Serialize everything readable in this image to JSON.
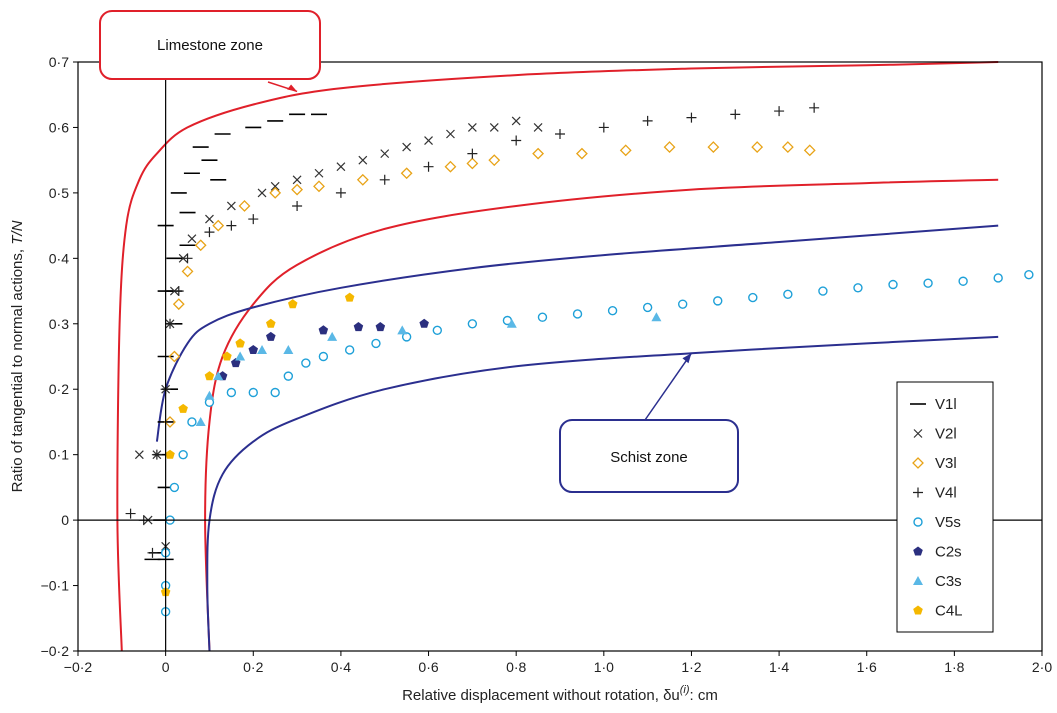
{
  "chart_data": {
    "type": "scatter",
    "xlabel": "Relative displacement without rotation, δu",
    "xlabel_superscript": "(i)",
    "xlabel_suffix": ": cm",
    "ylabel": "Ratio of tangential to normal actions, ",
    "ylabel_italic": "T/N",
    "xlim": [
      -0.2,
      2.0
    ],
    "ylim": [
      -0.2,
      0.7
    ],
    "x_ticks": [
      -0.2,
      0.0,
      0.2,
      0.4,
      0.6,
      0.8,
      1.0,
      1.2,
      1.4,
      1.6,
      1.8,
      2.0
    ],
    "x_tick_labels": [
      "−0·2",
      "0",
      "0·2",
      "0·4",
      "0·6",
      "0·8",
      "1·0",
      "1·2",
      "1·4",
      "1·6",
      "1·8",
      "2·0"
    ],
    "y_ticks": [
      -0.2,
      -0.1,
      0.0,
      0.1,
      0.2,
      0.3,
      0.4,
      0.5,
      0.6,
      0.7
    ],
    "y_tick_labels": [
      "−0·2",
      "−0·1",
      "0",
      "0·1",
      "0·2",
      "0·3",
      "0·4",
      "0·5",
      "0·6",
      "0·7"
    ],
    "grid": false,
    "legend_position": "bottom-right",
    "annotations": [
      {
        "text": "Limestone zone",
        "color": "#e0202a",
        "arrow_to": [
          0.3,
          0.655
        ]
      },
      {
        "text": "Schist zone",
        "color": "#2b2f8f",
        "arrow_to": [
          1.2,
          0.255
        ]
      }
    ],
    "envelopes": [
      {
        "zone": "Limestone zone",
        "color": "#e0202a",
        "points": [
          [
            -0.1,
            -0.2
          ],
          [
            -0.11,
            0.0
          ],
          [
            -0.105,
            0.3
          ],
          [
            -0.09,
            0.45
          ],
          [
            -0.06,
            0.52
          ],
          [
            -0.02,
            0.56
          ],
          [
            0.05,
            0.6
          ],
          [
            0.2,
            0.635
          ],
          [
            0.4,
            0.66
          ],
          [
            0.8,
            0.68
          ],
          [
            1.2,
            0.69
          ],
          [
            1.6,
            0.695
          ],
          [
            1.9,
            0.7
          ]
        ]
      },
      {
        "zone": "Limestone zone",
        "color": "#e0202a",
        "points": [
          [
            0.1,
            -0.2
          ],
          [
            0.09,
            0.0
          ],
          [
            0.1,
            0.15
          ],
          [
            0.13,
            0.25
          ],
          [
            0.2,
            0.33
          ],
          [
            0.3,
            0.39
          ],
          [
            0.5,
            0.445
          ],
          [
            0.8,
            0.48
          ],
          [
            1.2,
            0.505
          ],
          [
            1.6,
            0.515
          ],
          [
            1.9,
            0.52
          ]
        ]
      },
      {
        "zone": "Schist zone",
        "color": "#2b2f8f",
        "points": [
          [
            -0.02,
            0.12
          ],
          [
            0.0,
            0.2
          ],
          [
            0.05,
            0.27
          ],
          [
            0.1,
            0.3
          ],
          [
            0.2,
            0.325
          ],
          [
            0.4,
            0.355
          ],
          [
            0.7,
            0.385
          ],
          [
            1.0,
            0.405
          ],
          [
            1.4,
            0.425
          ],
          [
            1.9,
            0.45
          ]
        ]
      },
      {
        "zone": "Schist zone",
        "color": "#2b2f8f",
        "points": [
          [
            0.1,
            -0.2
          ],
          [
            0.095,
            -0.1
          ],
          [
            0.1,
            0.0
          ],
          [
            0.13,
            0.07
          ],
          [
            0.2,
            0.12
          ],
          [
            0.3,
            0.155
          ],
          [
            0.5,
            0.2
          ],
          [
            0.8,
            0.235
          ],
          [
            1.2,
            0.255
          ],
          [
            1.6,
            0.27
          ],
          [
            1.9,
            0.28
          ]
        ]
      }
    ],
    "series": [
      {
        "name": "V1l",
        "marker": "dash",
        "color": "#000000",
        "points": [
          [
            -0.03,
            -0.06
          ],
          [
            -0.02,
            -0.05
          ],
          [
            0.0,
            -0.06
          ],
          [
            -0.01,
            0.0
          ],
          [
            0.0,
            0.05
          ],
          [
            -0.01,
            0.1
          ],
          [
            0.0,
            0.15
          ],
          [
            0.01,
            0.2
          ],
          [
            0.0,
            0.25
          ],
          [
            0.02,
            0.3
          ],
          [
            0.0,
            0.35
          ],
          [
            0.02,
            0.4
          ],
          [
            0.0,
            0.45
          ],
          [
            0.05,
            0.47
          ],
          [
            0.03,
            0.5
          ],
          [
            0.06,
            0.53
          ],
          [
            0.1,
            0.55
          ],
          [
            0.08,
            0.57
          ],
          [
            0.13,
            0.59
          ],
          [
            0.2,
            0.6
          ],
          [
            0.25,
            0.61
          ],
          [
            0.3,
            0.62
          ],
          [
            0.35,
            0.62
          ],
          [
            0.12,
            0.52
          ],
          [
            0.05,
            0.42
          ],
          [
            0.02,
            0.35
          ]
        ]
      },
      {
        "name": "V2l",
        "marker": "cross",
        "color": "#333333",
        "points": [
          [
            -0.04,
            0.0
          ],
          [
            -0.02,
            0.1
          ],
          [
            0.0,
            0.2
          ],
          [
            0.01,
            0.3
          ],
          [
            0.02,
            0.35
          ],
          [
            0.04,
            0.4
          ],
          [
            0.06,
            0.43
          ],
          [
            0.1,
            0.46
          ],
          [
            0.15,
            0.48
          ],
          [
            0.22,
            0.5
          ],
          [
            0.3,
            0.52
          ],
          [
            0.4,
            0.54
          ],
          [
            0.5,
            0.56
          ],
          [
            0.6,
            0.58
          ],
          [
            0.7,
            0.6
          ],
          [
            0.8,
            0.61
          ],
          [
            0.85,
            0.6
          ],
          [
            0.75,
            0.6
          ],
          [
            0.65,
            0.59
          ],
          [
            0.55,
            0.57
          ],
          [
            0.45,
            0.55
          ],
          [
            0.35,
            0.53
          ],
          [
            0.25,
            0.51
          ],
          [
            0.0,
            -0.04
          ],
          [
            -0.06,
            0.1
          ]
        ]
      },
      {
        "name": "V3l",
        "marker": "diamond",
        "color": "#e8a317",
        "points": [
          [
            0.01,
            0.15
          ],
          [
            0.02,
            0.25
          ],
          [
            0.03,
            0.33
          ],
          [
            0.05,
            0.38
          ],
          [
            0.08,
            0.42
          ],
          [
            0.12,
            0.45
          ],
          [
            0.18,
            0.48
          ],
          [
            0.25,
            0.5
          ],
          [
            0.35,
            0.51
          ],
          [
            0.45,
            0.52
          ],
          [
            0.55,
            0.53
          ],
          [
            0.65,
            0.54
          ],
          [
            0.75,
            0.55
          ],
          [
            0.85,
            0.56
          ],
          [
            0.95,
            0.56
          ],
          [
            1.05,
            0.565
          ],
          [
            1.15,
            0.57
          ],
          [
            1.25,
            0.57
          ],
          [
            1.35,
            0.57
          ],
          [
            1.42,
            0.57
          ],
          [
            1.47,
            0.565
          ],
          [
            0.7,
            0.545
          ],
          [
            0.3,
            0.505
          ]
        ]
      },
      {
        "name": "V4l",
        "marker": "plus",
        "color": "#222222",
        "points": [
          [
            -0.03,
            -0.05
          ],
          [
            -0.05,
            0.0
          ],
          [
            -0.02,
            0.1
          ],
          [
            0.0,
            0.2
          ],
          [
            0.01,
            0.3
          ],
          [
            0.03,
            0.35
          ],
          [
            0.05,
            0.4
          ],
          [
            0.1,
            0.44
          ],
          [
            0.15,
            0.45
          ],
          [
            0.2,
            0.46
          ],
          [
            0.3,
            0.48
          ],
          [
            0.4,
            0.5
          ],
          [
            0.5,
            0.52
          ],
          [
            0.6,
            0.54
          ],
          [
            0.7,
            0.56
          ],
          [
            0.8,
            0.58
          ],
          [
            0.9,
            0.59
          ],
          [
            1.0,
            0.6
          ],
          [
            1.1,
            0.61
          ],
          [
            1.2,
            0.615
          ],
          [
            1.3,
            0.62
          ],
          [
            1.4,
            0.625
          ],
          [
            1.48,
            0.63
          ],
          [
            -0.08,
            0.01
          ]
        ]
      },
      {
        "name": "V5s",
        "marker": "circle",
        "color": "#1ea0d8",
        "points": [
          [
            0.0,
            -0.14
          ],
          [
            0.0,
            -0.1
          ],
          [
            0.0,
            -0.05
          ],
          [
            0.01,
            0.0
          ],
          [
            0.02,
            0.05
          ],
          [
            0.04,
            0.1
          ],
          [
            0.06,
            0.15
          ],
          [
            0.1,
            0.18
          ],
          [
            0.15,
            0.195
          ],
          [
            0.2,
            0.195
          ],
          [
            0.25,
            0.195
          ],
          [
            0.28,
            0.22
          ],
          [
            0.32,
            0.24
          ],
          [
            0.36,
            0.25
          ],
          [
            0.42,
            0.26
          ],
          [
            0.48,
            0.27
          ],
          [
            0.55,
            0.28
          ],
          [
            0.62,
            0.29
          ],
          [
            0.7,
            0.3
          ],
          [
            0.78,
            0.305
          ],
          [
            0.86,
            0.31
          ],
          [
            0.94,
            0.315
          ],
          [
            1.02,
            0.32
          ],
          [
            1.1,
            0.325
          ],
          [
            1.18,
            0.33
          ],
          [
            1.26,
            0.335
          ],
          [
            1.34,
            0.34
          ],
          [
            1.42,
            0.345
          ],
          [
            1.5,
            0.35
          ],
          [
            1.58,
            0.355
          ],
          [
            1.66,
            0.36
          ],
          [
            1.74,
            0.362
          ],
          [
            1.82,
            0.365
          ],
          [
            1.9,
            0.37
          ],
          [
            1.97,
            0.375
          ]
        ]
      },
      {
        "name": "C2s",
        "marker": "pentagon",
        "color": "#2b2f7f",
        "points": [
          [
            0.13,
            0.22
          ],
          [
            0.16,
            0.24
          ],
          [
            0.2,
            0.26
          ],
          [
            0.24,
            0.28
          ],
          [
            0.36,
            0.29
          ],
          [
            0.44,
            0.295
          ],
          [
            0.49,
            0.295
          ],
          [
            0.59,
            0.3
          ]
        ]
      },
      {
        "name": "C3s",
        "marker": "triangle",
        "color": "#5ab8e6",
        "points": [
          [
            0.08,
            0.15
          ],
          [
            0.1,
            0.19
          ],
          [
            0.12,
            0.22
          ],
          [
            0.17,
            0.25
          ],
          [
            0.22,
            0.26
          ],
          [
            0.28,
            0.26
          ],
          [
            0.38,
            0.28
          ],
          [
            0.54,
            0.29
          ],
          [
            0.79,
            0.3
          ],
          [
            1.12,
            0.31
          ]
        ]
      },
      {
        "name": "C4L",
        "marker": "pentagon",
        "color": "#f5b800",
        "points": [
          [
            0.0,
            -0.11
          ],
          [
            0.01,
            0.1
          ],
          [
            0.04,
            0.17
          ],
          [
            0.1,
            0.22
          ],
          [
            0.14,
            0.25
          ],
          [
            0.17,
            0.27
          ],
          [
            0.24,
            0.3
          ],
          [
            0.29,
            0.33
          ],
          [
            0.42,
            0.34
          ]
        ]
      }
    ]
  }
}
